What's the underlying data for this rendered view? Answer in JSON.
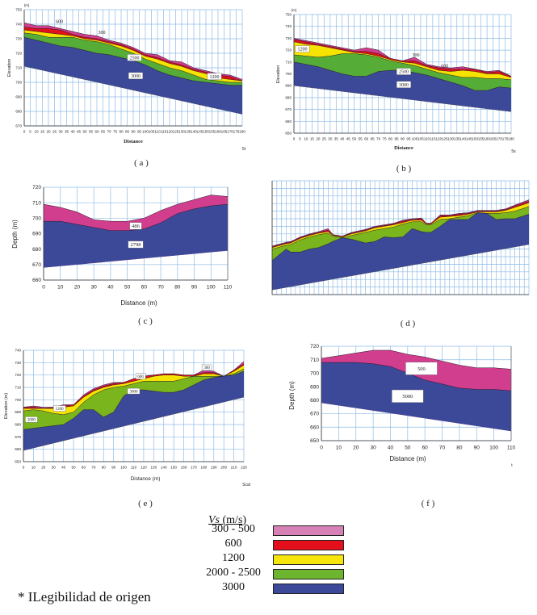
{
  "legend": {
    "title_italic": "Vs",
    "title_unit": "(m/s)",
    "items": [
      {
        "label": "300 - 500",
        "color": "#d680b6"
      },
      {
        "label": "600",
        "color": "#e3101c"
      },
      {
        "label": "1200",
        "color": "#f6e50a"
      },
      {
        "label": "2000 - 2500",
        "color": "#6db52e"
      },
      {
        "label": "3000",
        "color": "#3c4898"
      }
    ]
  },
  "footnote": "* ILegibilidad de origen",
  "layer_colors": {
    "pink": "#d13e8e",
    "red": "#e0101c",
    "yellow": "#f6e400",
    "green": "#55ad37",
    "green2": "#7ab51d",
    "blue": "#3c4898"
  },
  "chart_data": [
    {
      "id": "a",
      "type": "area",
      "caption": "( a )",
      "xlabel": "Distance",
      "ylabel": "Elevation",
      "yunit": "(m)",
      "note": "5t",
      "xlim": [
        0,
        180
      ],
      "xtick_step": 5,
      "ylim": [
        670,
        750
      ],
      "ytick_step": 10,
      "grid": true,
      "x": [
        0,
        10,
        20,
        30,
        40,
        50,
        60,
        70,
        80,
        90,
        100,
        110,
        120,
        130,
        140,
        150,
        160,
        170,
        180
      ],
      "base": [
        [
          0,
          711
        ],
        [
          180,
          678
        ]
      ],
      "layers": [
        {
          "name": "300",
          "color": "pink",
          "top": [
            741,
            739,
            739,
            737,
            735,
            733,
            732,
            729,
            727,
            724,
            720,
            719,
            715,
            714,
            710,
            708,
            706,
            705,
            702
          ]
        },
        {
          "name": "600",
          "color": "red",
          "top": [
            738,
            737,
            737,
            736,
            733,
            731,
            730,
            728,
            726,
            723,
            719,
            717,
            714,
            712,
            709,
            707,
            705,
            704,
            701
          ]
        },
        {
          "name": "1200",
          "color": "yellow",
          "top": [
            736,
            735,
            734,
            733,
            732,
            730,
            729,
            727,
            725,
            722,
            718,
            716,
            713,
            711,
            708,
            706,
            703,
            702,
            701
          ]
        },
        {
          "name": "2500",
          "color": "green",
          "top": [
            734,
            733,
            731,
            731,
            731,
            729,
            728,
            726,
            723,
            720,
            716,
            713,
            710,
            708,
            705,
            702,
            701,
            700,
            700
          ]
        },
        {
          "name": "3000",
          "color": "blue",
          "top": [
            731,
            729,
            727,
            725,
            724,
            722,
            720,
            719,
            717,
            715,
            712,
            708,
            705,
            703,
            701,
            700,
            699,
            698,
            698
          ]
        }
      ],
      "labels": [
        {
          "text": "600",
          "x": 29,
          "y": 742,
          "boxed": false
        },
        {
          "text": "300",
          "x": 64,
          "y": 734.5,
          "boxed": false
        },
        {
          "text": "2500",
          "x": 91,
          "y": 717,
          "boxed": true
        },
        {
          "text": "3000",
          "x": 92,
          "y": 704.5,
          "boxed": true
        },
        {
          "text": "1200",
          "x": 157,
          "y": 704,
          "boxed": true
        }
      ]
    },
    {
      "id": "b",
      "type": "area",
      "caption": "( b )",
      "xlabel": "Distance",
      "ylabel": "Elevation",
      "yunit": "(m)",
      "note": "5s",
      "xlim": [
        0,
        180
      ],
      "xtick_step": 5,
      "ylim": [
        650,
        750
      ],
      "ytick_step": 10,
      "grid": true,
      "x": [
        0,
        10,
        20,
        30,
        40,
        50,
        60,
        70,
        80,
        90,
        100,
        110,
        120,
        130,
        140,
        150,
        160,
        170,
        180
      ],
      "base": [
        [
          0,
          690
        ],
        [
          180,
          668
        ]
      ],
      "layers": [
        {
          "name": "300",
          "color": "pink",
          "top": [
            730,
            728,
            726,
            724,
            722,
            720,
            722,
            720,
            713,
            711,
            714,
            708,
            706,
            705,
            706,
            704,
            702,
            703,
            698
          ]
        },
        {
          "name": "600",
          "color": "red",
          "top": [
            729,
            727,
            725,
            723,
            721,
            719,
            719,
            717,
            713,
            711,
            711,
            707,
            705,
            704,
            704,
            704,
            701,
            702,
            698
          ]
        },
        {
          "name": "1200",
          "color": "yellow",
          "top": [
            727,
            725,
            724,
            722,
            720,
            718,
            717,
            715,
            712,
            710,
            709,
            706,
            703,
            702,
            703,
            702,
            700,
            700,
            697
          ]
        },
        {
          "name": "2500",
          "color": "green",
          "top": [
            716,
            715,
            714,
            715,
            717,
            717,
            716,
            714,
            711,
            709,
            707,
            704,
            701,
            699,
            697,
            697,
            696,
            696,
            695
          ]
        },
        {
          "name": "3000",
          "color": "blue",
          "top": [
            710,
            708,
            706,
            703,
            700,
            698,
            698,
            702,
            703,
            703,
            701,
            699,
            696,
            693,
            690,
            686,
            686,
            689,
            688
          ]
        }
      ],
      "labels": [
        {
          "text": "1200",
          "x": 7,
          "y": 721,
          "boxed": true
        },
        {
          "text": "300",
          "x": 101,
          "y": 716,
          "boxed": false
        },
        {
          "text": "600",
          "x": 125,
          "y": 707,
          "boxed": false
        },
        {
          "text": "2500",
          "x": 91,
          "y": 702,
          "boxed": true
        },
        {
          "text": "3000",
          "x": 91,
          "y": 691,
          "boxed": true
        }
      ]
    },
    {
      "id": "c",
      "type": "area",
      "caption": "( c )",
      "xlabel": "Distance (m)",
      "ylabel": "Depth (m)",
      "yunit": "",
      "note": "",
      "xlim": [
        0,
        110
      ],
      "xtick_step": 10,
      "ylim": [
        660,
        720
      ],
      "ytick_step": 10,
      "grid": true,
      "x": [
        0,
        10,
        20,
        30,
        40,
        50,
        60,
        70,
        80,
        90,
        100,
        110
      ],
      "base": [
        [
          0,
          668
        ],
        [
          110,
          679
        ]
      ],
      "layers": [
        {
          "name": "486",
          "color": "pink",
          "top": [
            709,
            707,
            704,
            699,
            698,
            698,
            700,
            705,
            709,
            712,
            715,
            714
          ]
        },
        {
          "name": "2798",
          "color": "blue",
          "top": [
            698,
            698,
            696,
            694,
            692,
            692,
            693,
            697,
            703,
            706,
            708,
            709
          ]
        }
      ],
      "labels": [
        {
          "text": "486",
          "x": 55,
          "y": 695,
          "boxed": true
        },
        {
          "text": "2798",
          "x": 55,
          "y": 683,
          "boxed": true
        }
      ]
    },
    {
      "id": "d",
      "type": "area",
      "caption": "( d )",
      "xlabel": "",
      "ylabel": "",
      "yunit": "",
      "note": "",
      "xlim": [
        0,
        55
      ],
      "xtick_step": 1,
      "ylim": [
        0,
        15
      ],
      "ytick_step": 1,
      "grid": true,
      "ticks_legible": false,
      "x": [
        0,
        3,
        4,
        6,
        8,
        10,
        12,
        13,
        15,
        17,
        20,
        22,
        24,
        26,
        28,
        30,
        32,
        33,
        34,
        36,
        38,
        40,
        42,
        44,
        46,
        48,
        50,
        52,
        55
      ],
      "base": [
        [
          0,
          0.6
        ],
        [
          55,
          6.6
        ]
      ],
      "layers": [
        {
          "name": "300",
          "color": "pink",
          "top": [
            6.4,
            6.9,
            7.0,
            7.6,
            8.0,
            8.3,
            8.7,
            7.9,
            7.7,
            8.2,
            8.6,
            9.0,
            9.2,
            9.4,
            9.8,
            10.0,
            10.1,
            9.4,
            9.4,
            10.5,
            10.5,
            10.7,
            10.8,
            11.1,
            11.1,
            11.1,
            11.3,
            11.8,
            12.5
          ]
        },
        {
          "name": "600",
          "color": "red",
          "top": [
            6.3,
            6.8,
            6.9,
            7.5,
            7.9,
            8.2,
            8.5,
            7.9,
            7.7,
            8.1,
            8.5,
            8.9,
            9.1,
            9.3,
            9.7,
            9.9,
            10.0,
            9.4,
            9.4,
            10.4,
            10.4,
            10.6,
            10.7,
            11.0,
            11.0,
            11.0,
            11.2,
            11.7,
            12.3
          ]
        },
        {
          "name": "1200",
          "color": "yellow",
          "top": [
            6.2,
            6.7,
            6.8,
            7.4,
            7.8,
            8.1,
            8.3,
            7.8,
            7.6,
            8.0,
            8.4,
            8.8,
            9.0,
            9.2,
            9.5,
            9.8,
            9.8,
            9.3,
            9.3,
            10.2,
            10.3,
            10.4,
            10.6,
            10.9,
            10.9,
            10.9,
            11.1,
            11.5,
            12.1
          ]
        },
        {
          "name": "2000",
          "color": "green2",
          "top": [
            6.0,
            6.5,
            6.6,
            7.2,
            7.6,
            7.9,
            8.1,
            7.7,
            7.5,
            7.8,
            8.2,
            8.5,
            8.7,
            8.9,
            9.3,
            9.6,
            9.6,
            9.2,
            9.2,
            9.9,
            10.0,
            10.2,
            10.4,
            10.8,
            10.7,
            10.7,
            10.8,
            11.0,
            11.6
          ]
        },
        {
          "name": "3000",
          "color": "blue",
          "top": [
            4.5,
            6.0,
            5.6,
            5.6,
            6.0,
            6.2,
            6.7,
            7.0,
            7.5,
            7.3,
            6.8,
            7.0,
            7.6,
            7.5,
            7.6,
            8.7,
            8.3,
            8.2,
            8.2,
            9.0,
            9.9,
            9.9,
            9.9,
            10.8,
            10.7,
            9.9,
            10.0,
            10.0,
            10.6
          ]
        }
      ],
      "labels": []
    },
    {
      "id": "e",
      "type": "area",
      "caption": "( e )",
      "xlabel": "Distance (m)",
      "ylabel": "Elevation (m)",
      "yunit": "",
      "note": "Scal",
      "xlim": [
        0,
        220
      ],
      "xtick_step": 10,
      "ylim": [
        650,
        740
      ],
      "ytick_step": 10,
      "grid": true,
      "x": [
        0,
        10,
        20,
        30,
        40,
        50,
        60,
        70,
        80,
        90,
        100,
        110,
        120,
        130,
        140,
        150,
        160,
        170,
        180,
        190,
        200,
        210,
        220
      ],
      "base": [
        [
          0,
          659
        ],
        [
          220,
          702
        ]
      ],
      "layers": [
        {
          "name": "300",
          "color": "pink",
          "top": [
            694,
            695,
            694,
            694,
            696,
            696,
            704,
            709,
            712,
            714,
            714,
            717,
            719,
            720,
            721,
            721,
            720,
            720,
            724,
            723,
            719,
            724,
            731
          ]
        },
        {
          "name": "600",
          "color": "red",
          "top": [
            694,
            694,
            693,
            694,
            695,
            696,
            703,
            708,
            711,
            713,
            714,
            717,
            719,
            720,
            721,
            721,
            720,
            720,
            722,
            722,
            719,
            724,
            729
          ]
        },
        {
          "name": "1200",
          "color": "yellow",
          "top": [
            693,
            693,
            693,
            693,
            694,
            695,
            702,
            707,
            710,
            712,
            713,
            715,
            717,
            719,
            720,
            720,
            719,
            719,
            721,
            721,
            719,
            723,
            728
          ]
        },
        {
          "name": "2000",
          "color": "green2",
          "top": [
            691,
            692,
            691,
            689,
            688,
            690,
            698,
            704,
            708,
            710,
            711,
            713,
            715,
            715,
            715,
            715,
            717,
            719,
            719,
            719,
            719,
            721,
            725
          ]
        },
        {
          "name": "3000",
          "color": "blue",
          "top": [
            676,
            677,
            678,
            679,
            680,
            685,
            692,
            692,
            686,
            690,
            703,
            708,
            708,
            707,
            706,
            706,
            708,
            712,
            716,
            718,
            719,
            720,
            723
          ]
        }
      ],
      "labels": [
        {
          "text": "2000",
          "x": 8,
          "y": 684,
          "boxed": true
        },
        {
          "text": "1200",
          "x": 36,
          "y": 693,
          "boxed": true
        },
        {
          "text": "600",
          "x": 117,
          "y": 719,
          "boxed": true
        },
        {
          "text": "3000",
          "x": 110,
          "y": 707,
          "boxed": true
        },
        {
          "text": "300",
          "x": 183,
          "y": 726,
          "boxed": true
        }
      ]
    },
    {
      "id": "f",
      "type": "area",
      "caption": "( f )",
      "xlabel": "Distance (m)",
      "ylabel": "Depth (m)",
      "yunit": "",
      "note": "t",
      "xlim": [
        0,
        110
      ],
      "xtick_step": 10,
      "ylim": [
        650,
        720
      ],
      "ytick_step": 10,
      "grid": true,
      "x": [
        0,
        10,
        20,
        30,
        40,
        50,
        60,
        70,
        80,
        90,
        100,
        110
      ],
      "base": [
        [
          0,
          678
        ],
        [
          110,
          657
        ]
      ],
      "layers": [
        {
          "name": "500",
          "color": "pink",
          "top": [
            711,
            713,
            715,
            717,
            717,
            714,
            712,
            709,
            706,
            704,
            704,
            703
          ]
        },
        {
          "name": "5000",
          "color": "blue",
          "top": [
            708,
            708,
            708,
            707,
            705,
            700,
            695,
            692,
            689,
            688,
            688,
            687
          ]
        }
      ],
      "labels": [
        {
          "text": "500",
          "x": 58,
          "y": 703.5,
          "boxed": true,
          "wide": true
        },
        {
          "text": "5000",
          "x": 50,
          "y": 683,
          "boxed": true,
          "wide": true
        }
      ]
    }
  ]
}
